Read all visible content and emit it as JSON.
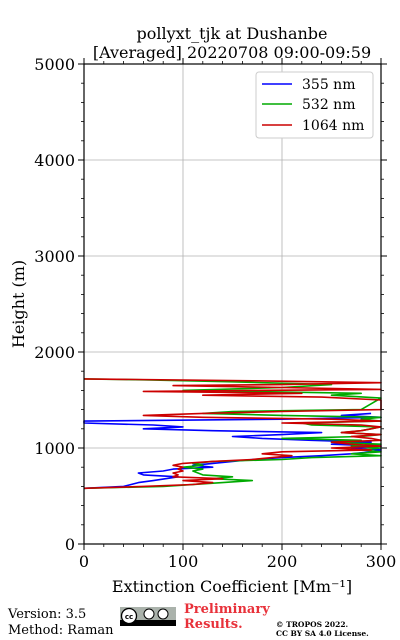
{
  "chart_data": {
    "type": "line",
    "title_line1": "pollyxt_tjk at Dushanbe",
    "title_line2": "[Averaged] 20220708 09:00-09:59",
    "xlabel": "Extinction Coefficient [Mm⁻¹]",
    "ylabel": "Height (m)",
    "xlim": [
      0,
      300
    ],
    "ylim": [
      0,
      5000
    ],
    "xticks": [
      "0",
      "100",
      "200",
      "300"
    ],
    "yticks": [
      "0",
      "1000",
      "2000",
      "3000",
      "4000",
      "5000"
    ],
    "grid": true,
    "legend_position": "top-right",
    "series": [
      {
        "name": "355 nm",
        "color": "#0000ff",
        "points": [
          [
            0,
            580
          ],
          [
            40,
            600
          ],
          [
            55,
            640
          ],
          [
            70,
            660
          ],
          [
            95,
            700
          ],
          [
            60,
            720
          ],
          [
            55,
            740
          ],
          [
            80,
            760
          ],
          [
            90,
            780
          ],
          [
            130,
            800
          ],
          [
            110,
            820
          ],
          [
            130,
            840
          ],
          [
            150,
            860
          ],
          [
            170,
            880
          ],
          [
            200,
            900
          ],
          [
            240,
            920
          ],
          [
            270,
            940
          ],
          [
            290,
            960
          ],
          [
            300,
            980
          ],
          [
            270,
            1000
          ],
          [
            300,
            1020
          ],
          [
            250,
            1040
          ],
          [
            290,
            1060
          ],
          [
            230,
            1080
          ],
          [
            180,
            1100
          ],
          [
            150,
            1120
          ],
          [
            200,
            1140
          ],
          [
            240,
            1160
          ],
          [
            130,
            1180
          ],
          [
            60,
            1200
          ],
          [
            100,
            1220
          ],
          [
            70,
            1240
          ],
          [
            0,
            1260
          ],
          [
            0,
            1280
          ],
          [
            200,
            1300
          ],
          [
            300,
            1320
          ],
          [
            260,
            1340
          ],
          [
            290,
            1360
          ]
        ]
      },
      {
        "name": "532 nm",
        "color": "#00aa00",
        "points": [
          [
            0,
            580
          ],
          [
            80,
            600
          ],
          [
            140,
            640
          ],
          [
            170,
            660
          ],
          [
            130,
            680
          ],
          [
            150,
            700
          ],
          [
            120,
            720
          ],
          [
            110,
            760
          ],
          [
            120,
            780
          ],
          [
            100,
            800
          ],
          [
            120,
            820
          ],
          [
            110,
            840
          ],
          [
            130,
            860
          ],
          [
            200,
            880
          ],
          [
            230,
            900
          ],
          [
            300,
            920
          ],
          [
            270,
            940
          ],
          [
            300,
            960
          ],
          [
            280,
            980
          ],
          [
            300,
            1000
          ],
          [
            270,
            1020
          ],
          [
            300,
            1040
          ],
          [
            250,
            1060
          ],
          [
            280,
            1080
          ],
          [
            200,
            1100
          ],
          [
            280,
            1120
          ],
          [
            300,
            1140
          ],
          [
            260,
            1160
          ],
          [
            280,
            1180
          ],
          [
            290,
            1200
          ],
          [
            300,
            1220
          ],
          [
            230,
            1240
          ],
          [
            220,
            1260
          ],
          [
            300,
            1280
          ],
          [
            280,
            1300
          ],
          [
            300,
            1320
          ],
          [
            200,
            1340
          ],
          [
            120,
            1360
          ],
          [
            150,
            1380
          ],
          [
            280,
            1400
          ],
          [
            300,
            1520
          ],
          [
            250,
            1550
          ],
          [
            280,
            1570
          ],
          [
            100,
            1600
          ],
          [
            200,
            1630
          ],
          [
            250,
            1660
          ],
          [
            150,
            1690
          ],
          [
            60,
            1710
          ],
          [
            0,
            1720
          ]
        ]
      },
      {
        "name": "1064 nm",
        "color": "#cc0000",
        "points": [
          [
            0,
            580
          ],
          [
            60,
            600
          ],
          [
            110,
            620
          ],
          [
            130,
            640
          ],
          [
            100,
            660
          ],
          [
            140,
            680
          ],
          [
            90,
            700
          ],
          [
            95,
            720
          ],
          [
            90,
            740
          ],
          [
            100,
            760
          ],
          [
            95,
            780
          ],
          [
            100,
            800
          ],
          [
            90,
            820
          ],
          [
            100,
            840
          ],
          [
            130,
            860
          ],
          [
            170,
            880
          ],
          [
            190,
            900
          ],
          [
            210,
            920
          ],
          [
            180,
            940
          ],
          [
            200,
            960
          ],
          [
            290,
            980
          ],
          [
            250,
            1000
          ],
          [
            300,
            1020
          ],
          [
            270,
            1040
          ],
          [
            250,
            1060
          ],
          [
            300,
            1080
          ],
          [
            290,
            1100
          ],
          [
            270,
            1120
          ],
          [
            300,
            1140
          ],
          [
            260,
            1160
          ],
          [
            280,
            1180
          ],
          [
            290,
            1200
          ],
          [
            300,
            1220
          ],
          [
            280,
            1240
          ],
          [
            200,
            1260
          ],
          [
            300,
            1280
          ],
          [
            250,
            1300
          ],
          [
            120,
            1320
          ],
          [
            60,
            1340
          ],
          [
            120,
            1360
          ],
          [
            200,
            1380
          ],
          [
            300,
            1400
          ],
          [
            300,
            1500
          ],
          [
            240,
            1530
          ],
          [
            120,
            1550
          ],
          [
            220,
            1570
          ],
          [
            60,
            1590
          ],
          [
            300,
            1610
          ],
          [
            200,
            1630
          ],
          [
            90,
            1650
          ],
          [
            200,
            1660
          ],
          [
            300,
            1680
          ],
          [
            170,
            1700
          ],
          [
            0,
            1720
          ]
        ]
      }
    ]
  },
  "footer": {
    "version": "Version: 3.5",
    "method": "Method: Raman",
    "preliminary": "Preliminary Results.",
    "copyright_line1": "© TROPOS 2022.",
    "copyright_line2": "CC BY SA 4.0 License."
  },
  "license_badge_text": "cc by sa"
}
